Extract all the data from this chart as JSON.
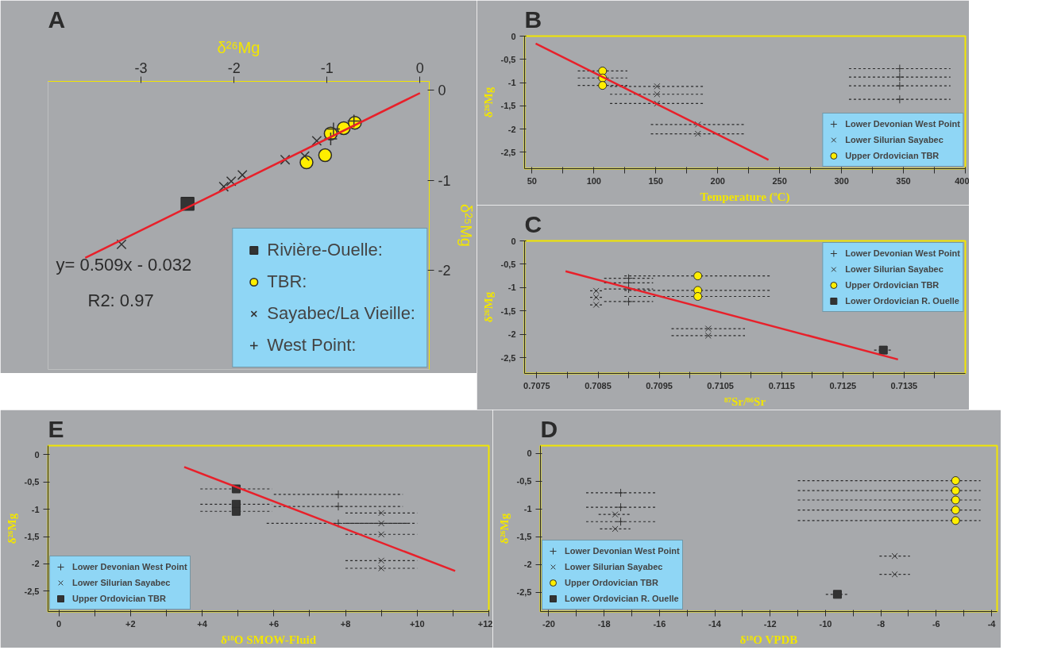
{
  "chart_data": [
    {
      "type": "scatter",
      "title": "A",
      "xlabel": "δ²⁶Mg",
      "ylabel": "δ²⁵Mg",
      "xlim": [
        -4,
        0.1
      ],
      "ylim": [
        -3.1,
        0.1
      ],
      "xticks": [
        -3,
        -2,
        -1,
        0
      ],
      "yticks": [
        0,
        -1,
        -2
      ],
      "grid": false,
      "legend": "bottom right",
      "annotations": [
        "y= 0.509x - 0.032",
        "R2: 0.97"
      ],
      "series": [
        {
          "name": "Rivière-Ouelle:",
          "color": "#333333",
          "marker": "square",
          "x": [
            -2.5
          ],
          "values": [
            -1.26
          ]
        },
        {
          "name": "TBR:",
          "color": "#ffee00",
          "marker": "circle",
          "x": [
            -1.22,
            -1.02,
            -0.96,
            -0.82,
            -0.7
          ],
          "values": [
            -0.8,
            -0.72,
            -0.48,
            -0.42,
            -0.36
          ]
        },
        {
          "name": "Sayabec/La Vieille:",
          "color": "#333333",
          "marker": "x",
          "x": [
            -3.21,
            -2.11,
            -2.03,
            -1.91,
            -1.45,
            -1.24,
            -1.11
          ],
          "values": [
            -1.71,
            -1.07,
            -1.01,
            -0.94,
            -0.77,
            -0.73,
            -0.56
          ]
        },
        {
          "name": "West Point:",
          "color": "#333333",
          "marker": "cross",
          "x": [
            -0.93,
            -0.96,
            -0.71
          ],
          "values": [
            -0.43,
            -0.54,
            -0.34
          ]
        },
        {
          "type": "line",
          "color": "#e8202a",
          "x": [
            -3.6,
            0
          ],
          "values": [
            -1.86,
            -0.03
          ]
        }
      ]
    },
    {
      "type": "scatter",
      "title": "B",
      "xlabel": "Temperature (ºC)",
      "ylabel": "δ²⁶Mg",
      "xlim": [
        44,
        400
      ],
      "ylim": [
        -2.85,
        0
      ],
      "xticks": [
        50,
        {
          "value": 75,
          "label": null
        },
        100,
        {
          "value": 125,
          "label": null
        },
        150,
        {
          "value": 175,
          "label": null
        },
        200,
        {
          "value": 225,
          "label": null
        },
        250,
        {
          "value": 275,
          "label": null
        },
        300,
        {
          "value": 325,
          "label": null
        },
        350,
        {
          "value": 375,
          "label": null
        },
        400
      ],
      "yticks": [
        0,
        {
          "value": -0.5,
          "label": "-0,5"
        },
        -1,
        {
          "value": -1.5,
          "label": "-1,5"
        },
        -2,
        {
          "value": -2.5,
          "label": "-2,5"
        }
      ],
      "grid": false,
      "legend": "bottom right",
      "series": [
        {
          "name": "Lower Devonian West Point",
          "color": "#333333",
          "marker": "cross",
          "x": [
            347,
            347,
            347,
            347
          ],
          "values": [
            -0.7,
            -0.88,
            -1.07,
            -1.36
          ],
          "xerrors": [
            41,
            41,
            41,
            41
          ]
        },
        {
          "name": "Lower Silurian Sayabec",
          "color": "#333333",
          "marker": "x",
          "x": [
            151,
            151,
            151,
            184,
            184
          ],
          "values": [
            -1.08,
            -1.25,
            -1.45,
            -1.9,
            -2.1
          ],
          "xerrors": [
            38,
            38,
            38,
            38,
            38
          ]
        },
        {
          "name": "Upper Ordovician TBR",
          "color": "#ffee00",
          "marker": "circle",
          "x": [
            107,
            107,
            107
          ],
          "values": [
            -0.75,
            -0.9,
            -1.06
          ],
          "xerrors": [
            20,
            20,
            20
          ]
        },
        {
          "type": "line",
          "color": "#e8202a",
          "x": [
            53,
            241
          ],
          "values": [
            -0.16,
            -2.66
          ]
        }
      ]
    },
    {
      "type": "scatter",
      "title": "C",
      "xlabel": "⁸⁷Sr/⁸⁶Sr",
      "ylabel": "δ²⁶Mg",
      "xlim": [
        0.7073,
        0.7145
      ],
      "ylim": [
        -2.84,
        0
      ],
      "xticks": [
        0.7075,
        {
          "value": 0.708,
          "label": null
        },
        0.7085,
        {
          "value": 0.709,
          "label": null
        },
        0.7095,
        {
          "value": 0.71,
          "label": null
        },
        0.7105,
        {
          "value": 0.711,
          "label": null
        },
        0.7115,
        {
          "value": 0.712,
          "label": null
        },
        0.7125,
        {
          "value": 0.713,
          "label": null
        },
        0.7135,
        {
          "value": 0.714,
          "label": null
        }
      ],
      "yticks": [
        0,
        {
          "value": -0.5,
          "label": "-0,5"
        },
        -1,
        {
          "value": -1.5,
          "label": "-1,5"
        },
        -2,
        {
          "value": -2.5,
          "label": "-2,5"
        }
      ],
      "grid": false,
      "legend": "top right",
      "series": [
        {
          "name": "Lower Devonian West Point",
          "color": "#333333",
          "marker": "cross",
          "x": [
            0.709,
            0.709,
            0.709,
            0.709
          ],
          "values": [
            -0.8,
            -0.9,
            -1.03,
            -1.3
          ],
          "xerrors": [
            0.0004,
            0.0004,
            0.0004,
            0.0004
          ]
        },
        {
          "name": "Lower Silurian Sayabec",
          "color": "#333333",
          "marker": "x",
          "x": [
            0.70847,
            0.70847,
            0.70847,
            0.7103,
            0.7103
          ],
          "values": [
            -1.07,
            -1.21,
            -1.37,
            -1.88,
            -2.03
          ],
          "xerrors": [
            0.0001,
            0.0001,
            0.0001,
            0.0006,
            0.0006
          ]
        },
        {
          "name": "Upper Ordovician TBR",
          "color": "#ffee00",
          "marker": "circle",
          "x": [
            0.71013,
            0.71013,
            0.71013
          ],
          "values": [
            -0.75,
            -1.06,
            -1.19
          ],
          "xerrors": [
            0.0012,
            0.0012,
            0.0012
          ]
        },
        {
          "name": "Lower Ordovician R. Ouelle",
          "color": "#333333",
          "marker": "square",
          "x": [
            0.71316
          ],
          "values": [
            -2.34
          ],
          "xerrors": [
            0.00015
          ]
        },
        {
          "type": "line",
          "color": "#e8202a",
          "x": [
            0.70797,
            0.7134
          ],
          "values": [
            -0.65,
            -2.54
          ]
        }
      ]
    },
    {
      "type": "scatter",
      "title": "E",
      "xlabel": "δ¹⁸O SMOW-Fluid",
      "ylabel": "δ²⁶Mg",
      "xlim": [
        -0.3,
        12
      ],
      "ylim": [
        -2.87,
        0.16
      ],
      "xticks": [
        0,
        {
          "value": 1,
          "label": null
        },
        {
          "value": 2,
          "label": "+2"
        },
        {
          "value": 3,
          "label": null
        },
        {
          "value": 4,
          "label": "+4"
        },
        {
          "value": 5,
          "label": null
        },
        {
          "value": 6,
          "label": "+6"
        },
        {
          "value": 7,
          "label": null
        },
        {
          "value": 8,
          "label": "+8"
        },
        {
          "value": 9,
          "label": null
        },
        {
          "value": 10,
          "label": "+10"
        },
        {
          "value": 11,
          "label": null
        },
        {
          "value": 12,
          "label": "+12"
        }
      ],
      "yticks": [
        0,
        {
          "value": -0.5,
          "label": "-0,5"
        },
        -1,
        {
          "value": -1.5,
          "label": "-1,5"
        },
        -2,
        {
          "value": -2.5,
          "label": "-2,5"
        }
      ],
      "grid": false,
      "legend": "bottom left",
      "series": [
        {
          "name": "Lower Devonian West Point",
          "color": "#333333",
          "marker": "cross",
          "x": [
            7.8,
            7.8,
            7.8
          ],
          "values": [
            -0.73,
            -0.95,
            -1.26
          ],
          "xerrors": [
            1.8,
            1.8,
            2
          ]
        },
        {
          "name": "Lower Silurian Sayabec",
          "color": "#333333",
          "marker": "x",
          "x": [
            9,
            9,
            9,
            9,
            9
          ],
          "values": [
            -1.07,
            -1.26,
            -1.46,
            -1.94,
            -2.08
          ],
          "xerrors": [
            1,
            1,
            1,
            1,
            1
          ]
        },
        {
          "name": "Upper Ordovician TBR",
          "color": "#333333",
          "marker": "square",
          "x": [
            4.95,
            4.95,
            4.95
          ],
          "values": [
            -0.63,
            -0.91,
            -1.04
          ],
          "xerrors": [
            1,
            1,
            1
          ]
        },
        {
          "type": "line",
          "color": "#e8202a",
          "x": [
            3.5,
            11.06
          ],
          "values": [
            -0.23,
            -2.13
          ]
        }
      ]
    },
    {
      "type": "scatter",
      "title": "D",
      "xlabel": "δ¹⁸O VPDB",
      "ylabel": "δ²⁶Mg",
      "xlim": [
        -20.3,
        -3.8
      ],
      "ylim": [
        -2.85,
        0.14
      ],
      "xticks": [
        -20,
        {
          "value": -19,
          "label": null
        },
        -18,
        {
          "value": -17,
          "label": null
        },
        -16,
        {
          "value": -15,
          "label": null
        },
        -14,
        {
          "value": -13,
          "label": null
        },
        -12,
        {
          "value": -11,
          "label": null
        },
        -10,
        {
          "value": -9,
          "label": null
        },
        -8,
        {
          "value": -7,
          "label": null
        },
        -6,
        {
          "value": -5,
          "label": null
        },
        -4
      ],
      "yticks": [
        0,
        {
          "value": -0.5,
          "label": "-0,5"
        },
        -1,
        {
          "value": -1.5,
          "label": "-1,5"
        },
        -2,
        {
          "value": -2.5,
          "label": "-2,5"
        }
      ],
      "grid": false,
      "legend": "bottom left",
      "series": [
        {
          "name": "Lower Devonian West Point",
          "color": "#333333",
          "marker": "cross",
          "x": [
            -17.4,
            -17.4,
            -17.4
          ],
          "values": [
            -0.71,
            -0.97,
            -1.23
          ],
          "xerrors": [
            1.25,
            1.25,
            1.25
          ]
        },
        {
          "name": "Lower Silurian Sayabec",
          "color": "#333333",
          "marker": "x",
          "x": [
            -17.6,
            -17.6,
            -7.5,
            -7.5
          ],
          "values": [
            -1.1,
            -1.36,
            -1.85,
            -2.18
          ],
          "xerrors": [
            0.6,
            0.55,
            0.55,
            0.55
          ]
        },
        {
          "name": "Upper Ordovician TBR",
          "color": "#ffee00",
          "marker": "circle",
          "x": [
            -5.3,
            -5.3,
            -5.3,
            -5.3,
            -5.3
          ],
          "values": [
            -0.49,
            -0.67,
            -0.84,
            -1.02,
            -1.21
          ],
          "xerrors": [
            [
              -11,
              -4.4
            ],
            [
              -11,
              -4.4
            ],
            [
              -11,
              -4.4
            ],
            [
              -11,
              -4.4
            ],
            [
              -11,
              -4.4
            ]
          ]
        },
        {
          "name": "Lower Ordovician R. Ouelle",
          "color": "#333333",
          "marker": "square",
          "x": [
            -9.57
          ],
          "values": [
            -2.54
          ],
          "xerrors": [
            0.42
          ]
        }
      ]
    }
  ]
}
